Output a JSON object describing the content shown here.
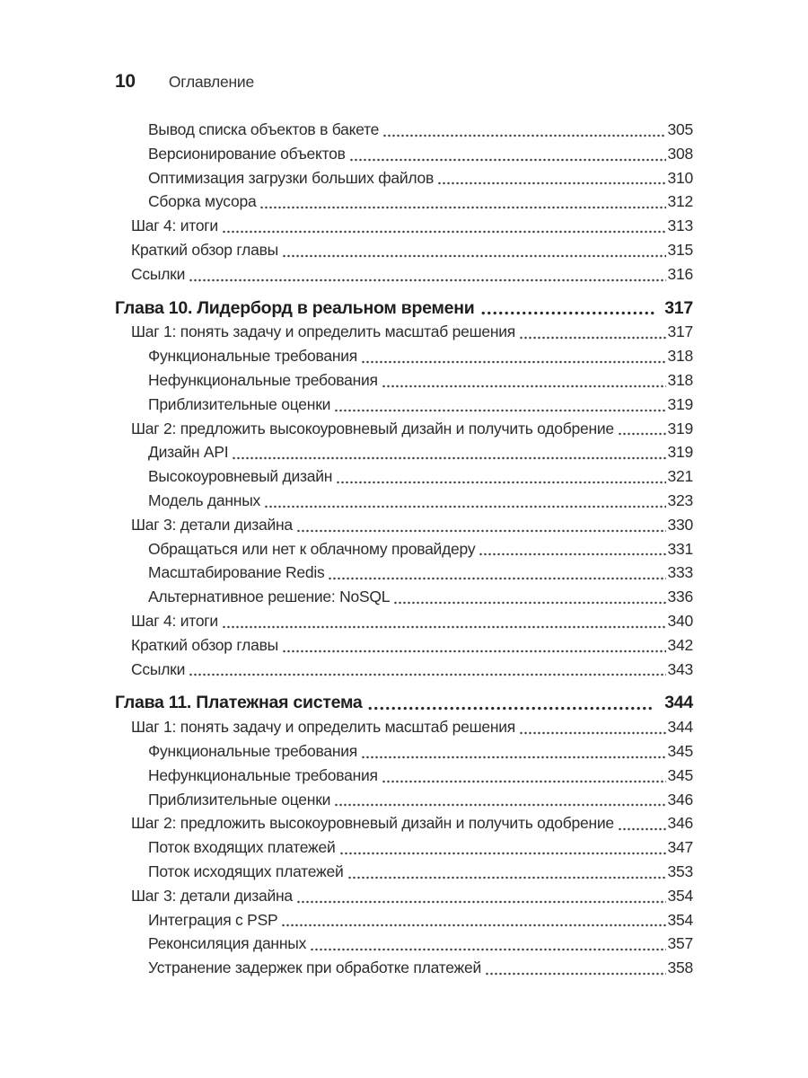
{
  "page": {
    "folio": "10",
    "running_title": "Оглавление"
  },
  "toc": {
    "sections": [
      {
        "entries": [
          {
            "level": 2,
            "label": "Вывод списка объектов в бакете",
            "page": "305"
          },
          {
            "level": 2,
            "label": "Версионирование объектов",
            "page": "308"
          },
          {
            "level": 2,
            "label": "Оптимизация загрузки больших файлов",
            "page": "310"
          },
          {
            "level": 2,
            "label": "Сборка мусора",
            "page": "312"
          },
          {
            "level": 1,
            "label": "Шаг 4: итоги",
            "page": "313"
          },
          {
            "level": 1,
            "label": "Краткий обзор главы",
            "page": "315"
          },
          {
            "level": 1,
            "label": "Ссылки",
            "page": "316"
          }
        ]
      },
      {
        "title": "Глава 10. Лидерборд в реальном времени",
        "page": "317",
        "entries": [
          {
            "level": 1,
            "label": "Шаг 1: понять задачу и определить масштаб решения",
            "page": "317"
          },
          {
            "level": 2,
            "label": "Функциональные требования",
            "page": "318"
          },
          {
            "level": 2,
            "label": "Нефункциональные требования",
            "page": "318"
          },
          {
            "level": 2,
            "label": "Приблизительные оценки",
            "page": "319"
          },
          {
            "level": 1,
            "label": "Шаг 2: предложить высокоуровневый дизайн и получить одобрение",
            "page": "319"
          },
          {
            "level": 2,
            "label": "Дизайн API",
            "page": "319"
          },
          {
            "level": 2,
            "label": "Высокоуровневый дизайн",
            "page": "321"
          },
          {
            "level": 2,
            "label": "Модель данных",
            "page": "323"
          },
          {
            "level": 1,
            "label": "Шаг 3: детали дизайна",
            "page": "330"
          },
          {
            "level": 2,
            "label": "Обращаться или нет к облачному провайдеру",
            "page": "331"
          },
          {
            "level": 2,
            "label": "Масштабирование Redis",
            "page": "333"
          },
          {
            "level": 2,
            "label": "Альтернативное решение: NoSQL",
            "page": "336"
          },
          {
            "level": 1,
            "label": "Шаг 4: итоги",
            "page": "340"
          },
          {
            "level": 1,
            "label": "Краткий обзор главы",
            "page": "342"
          },
          {
            "level": 1,
            "label": "Ссылки",
            "page": "343"
          }
        ]
      },
      {
        "title": "Глава 11. Платежная система",
        "page": "344",
        "entries": [
          {
            "level": 1,
            "label": "Шаг 1: понять задачу и определить масштаб решения",
            "page": "344"
          },
          {
            "level": 2,
            "label": "Функциональные требования",
            "page": "345"
          },
          {
            "level": 2,
            "label": "Нефункциональные требования",
            "page": "345"
          },
          {
            "level": 2,
            "label": "Приблизительные оценки",
            "page": "346"
          },
          {
            "level": 1,
            "label": "Шаг 2: предложить высокоуровневый дизайн и получить одобрение",
            "page": "346"
          },
          {
            "level": 2,
            "label": "Поток входящих платежей",
            "page": "347"
          },
          {
            "level": 2,
            "label": "Поток исходящих платежей",
            "page": "353"
          },
          {
            "level": 1,
            "label": "Шаг 3: детали дизайна",
            "page": "354"
          },
          {
            "level": 2,
            "label": "Интеграция с PSP",
            "page": "354"
          },
          {
            "level": 2,
            "label": "Реконсиляция данных",
            "page": "357"
          },
          {
            "level": 2,
            "label": "Устранение задержек при обработке платежей",
            "page": "358"
          }
        ]
      }
    ]
  }
}
